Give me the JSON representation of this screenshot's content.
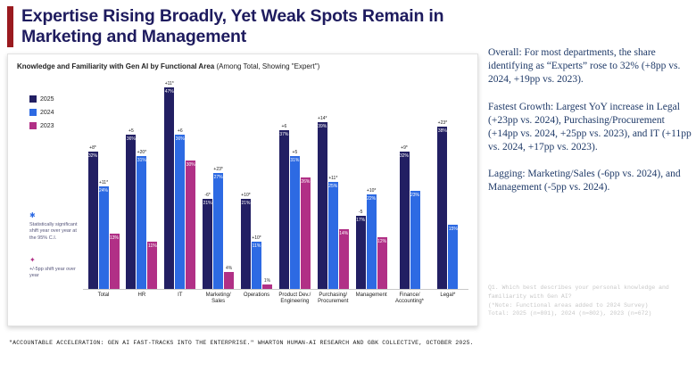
{
  "slide": {
    "title": "Expertise Rising Broadly, Yet Weak Spots Remain in Marketing and Management"
  },
  "right_panel": {
    "paragraphs": [
      "Overall: For most departments, the share identifying as “Experts” rose to 32% (+8pp vs. 2024, +19pp vs. 2023).",
      "Fastest Growth: Largest YoY increase in Legal (+23pp vs. 2024), Purchasing/Procurement (+14pp vs. 2024, +25pp vs. 2023), and IT (+11pp vs. 2024, +17pp vs. 2023).",
      "Lagging: Marketing/Sales (-6pp vs. 2024), and Management (-5pp vs. 2024)."
    ]
  },
  "notes": {
    "sig_symbol": "✱",
    "sig_text": "Statistically significant shift year over year at the 95% C.I.",
    "shift_symbol": "✦",
    "shift_text": "+/-5pp shift year over year"
  },
  "source_note": {
    "lines": [
      "Q1. Which best describes your personal knowledge and familiarity with Gen AI?",
      "(*Note: Functional areas added to 2024 Survey)",
      "Total: 2025 (n=801), 2024 (n=802), 2023 (n=672)"
    ]
  },
  "footer": {
    "text": "\"ACCOUNTABLE ACCELERATION: GEN AI FAST-TRACKS INTO THE ENTERPRISE.\" WHARTON HUMAN-AI RESEARCH AND GBK COLLECTIVE, OCTOBER 2025."
  },
  "colors": {
    "accent_red": "#9a1a1f",
    "title_navy": "#1e1b5e",
    "bar_2025": "#221f63",
    "bar_2024": "#2d6ae3",
    "bar_2023": "#b13086"
  },
  "chart_data": {
    "type": "bar",
    "title": "Knowledge and Familiarity with Gen AI by Functional Area",
    "subtitle": "(Among Total, Showing \"Expert\")",
    "unit": "%",
    "ylim": [
      0,
      50
    ],
    "grid": false,
    "legend_position": "left",
    "categories": [
      "Total",
      "HR",
      "IT",
      "Marketing/ Sales",
      "Operations",
      "Product Dev./ Engineering",
      "Purchasing/ Procurement",
      "Management",
      "Finance/ Accounting*",
      "Legal*"
    ],
    "series": [
      {
        "name": "2025",
        "color": "#221f63",
        "values": [
          32,
          36,
          47,
          21,
          21,
          37,
          39,
          17,
          32,
          38
        ],
        "annotations": [
          "+8*",
          "+5",
          "+11*",
          "-6*",
          "+10*",
          "+6",
          "+14*",
          "-5",
          "+9*",
          "+23*"
        ]
      },
      {
        "name": "2024",
        "color": "#2d6ae3",
        "values": [
          24,
          31,
          36,
          27,
          11,
          31,
          25,
          22,
          23,
          15
        ],
        "annotations": [
          "+11*",
          "+20*",
          "+6",
          "+23*",
          "+10*",
          "+5",
          "+11*",
          "+10*",
          "",
          ""
        ]
      },
      {
        "name": "2023",
        "color": "#b13086",
        "values": [
          13,
          11,
          30,
          4,
          1,
          26,
          14,
          12,
          null,
          null
        ],
        "annotations": [
          "",
          "",
          "",
          "",
          "",
          "",
          "",
          "",
          "",
          ""
        ]
      }
    ]
  }
}
